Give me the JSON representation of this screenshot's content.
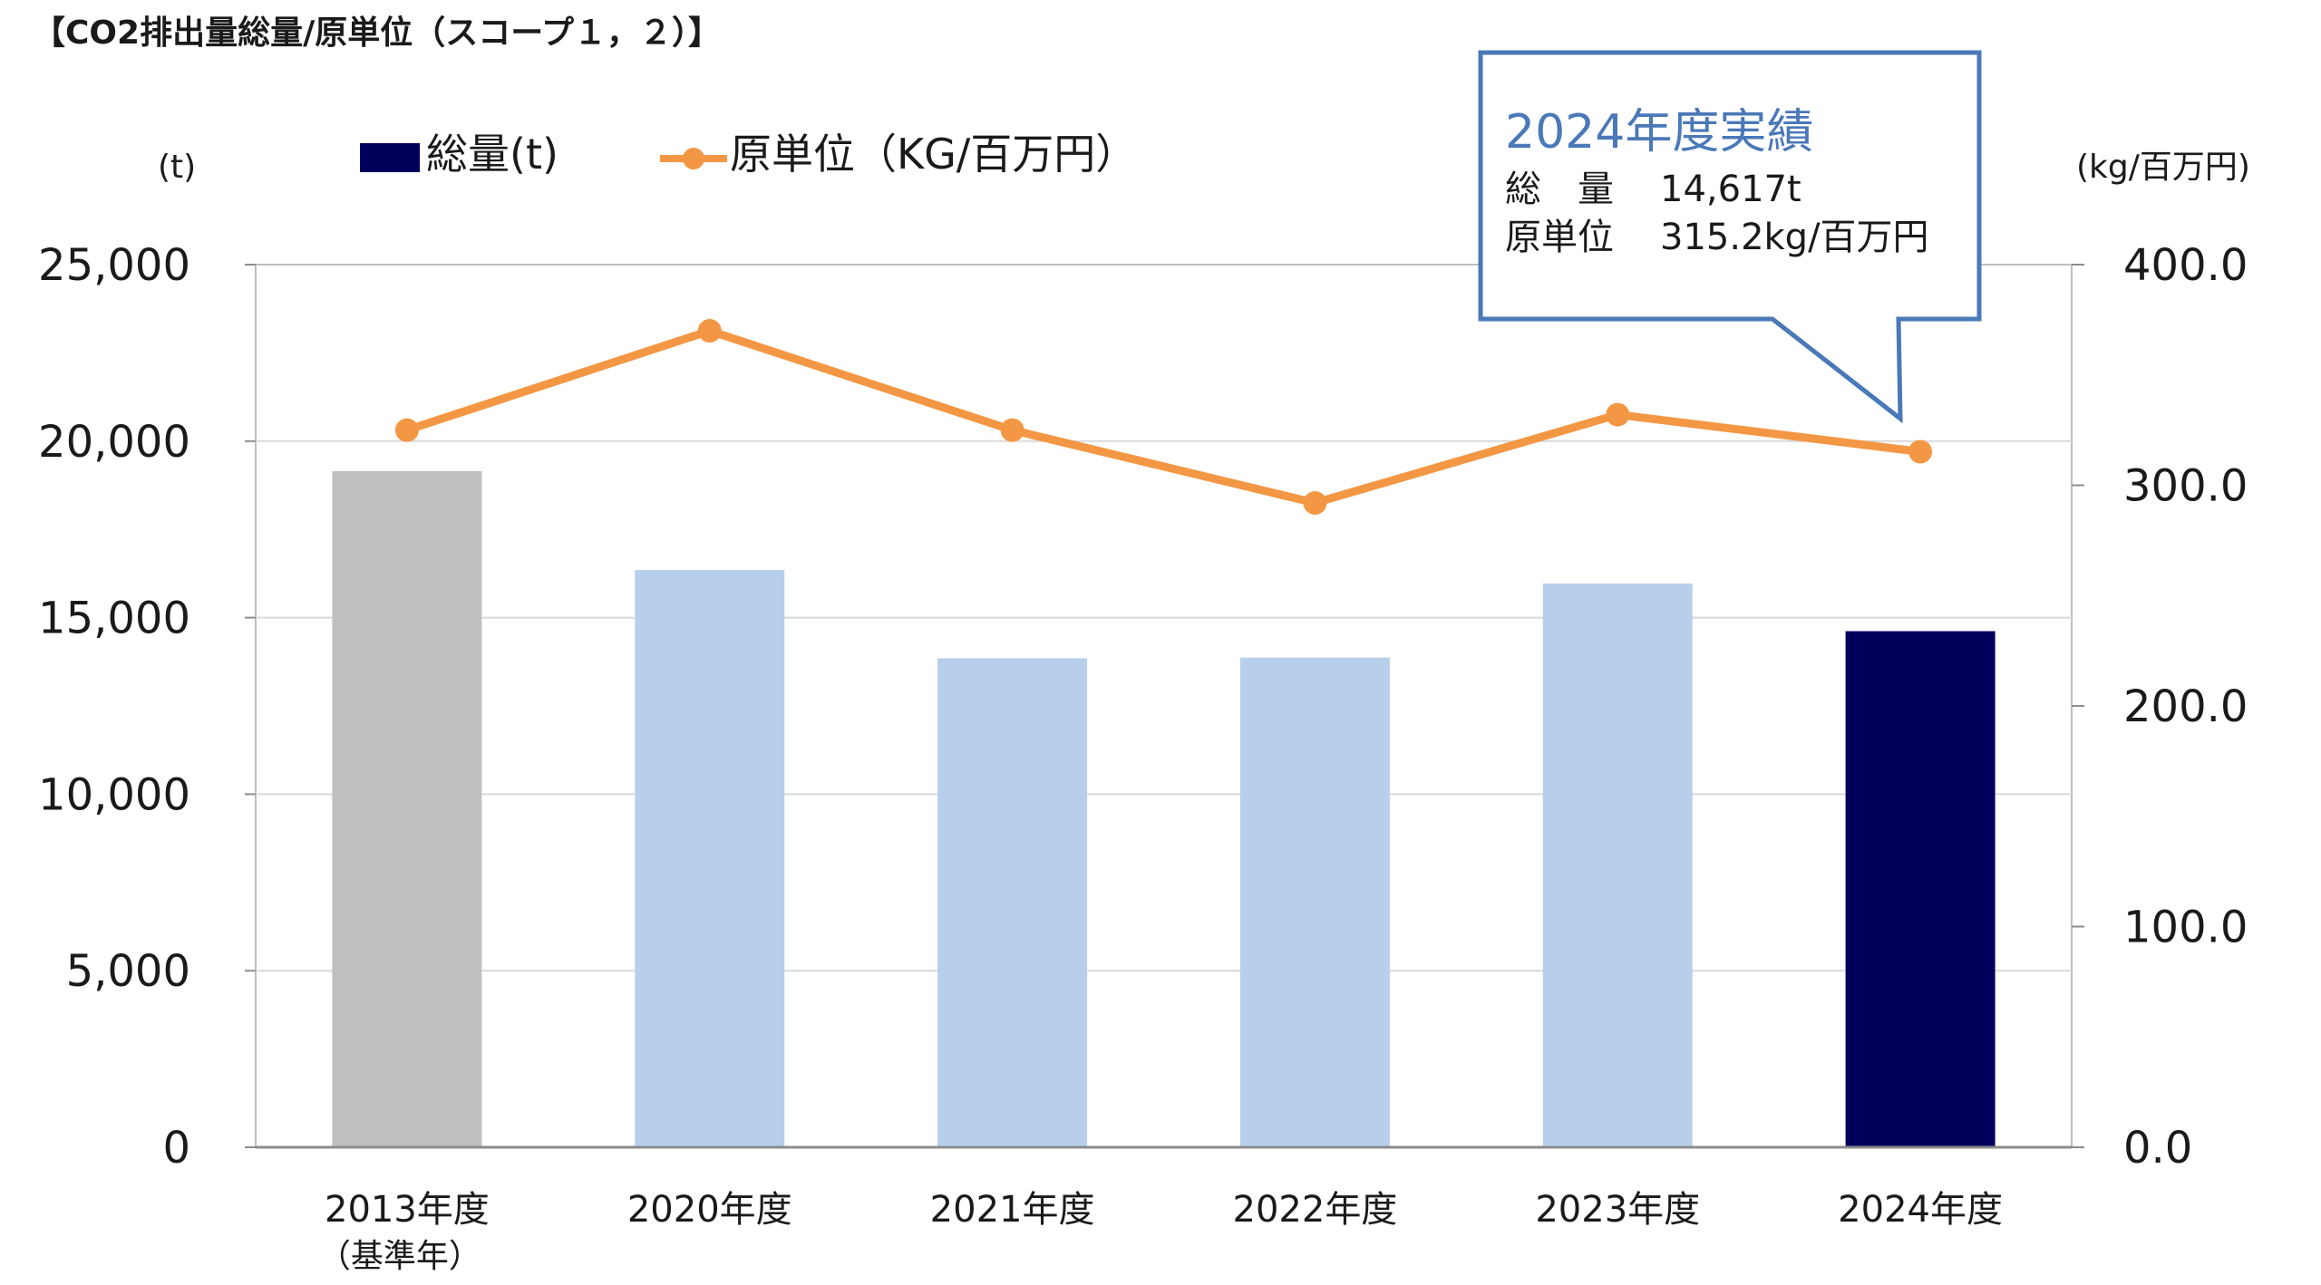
{
  "chart_data": {
    "type": "bar",
    "title": "【CO2排出量総量/原単位（スコープ１，２）】",
    "categories": [
      "2013年度",
      "2020年度",
      "2021年度",
      "2022年度",
      "2023年度",
      "2024年度"
    ],
    "category_sublabels": [
      "（基準年）",
      "",
      "",
      "",
      "",
      ""
    ],
    "series": [
      {
        "name": "総量(t)",
        "type": "bar",
        "axis": "left",
        "values": [
          19150,
          16350,
          13850,
          13870,
          15970,
          14617
        ],
        "colors": [
          "#bfbfbf",
          "#b8cfec",
          "#b8cfec",
          "#b8cfec",
          "#b8cfec",
          "#00005c"
        ]
      },
      {
        "name": "原単位（KG/百万円）",
        "type": "line",
        "axis": "right",
        "values": [
          325,
          370,
          325,
          292,
          332,
          315.2
        ],
        "color": "#f39744"
      }
    ],
    "left_axis": {
      "unit": "(t)",
      "ylim": [
        0,
        25000
      ],
      "ticks": [
        "0",
        "5,000",
        "10,000",
        "15,000",
        "20,000",
        "25,000"
      ]
    },
    "right_axis": {
      "unit": "(kg/百万円)",
      "ylim": [
        0,
        400
      ],
      "ticks": [
        "0.0",
        "100.0",
        "200.0",
        "300.0",
        "400.0"
      ]
    },
    "grid": true,
    "legend": "top-left",
    "callout": {
      "title": "2024年度実績",
      "line1_label": "総　量",
      "line1_value": "14,617t",
      "line2_label": "原単位",
      "line2_value": "315.2kg/百万円"
    }
  }
}
